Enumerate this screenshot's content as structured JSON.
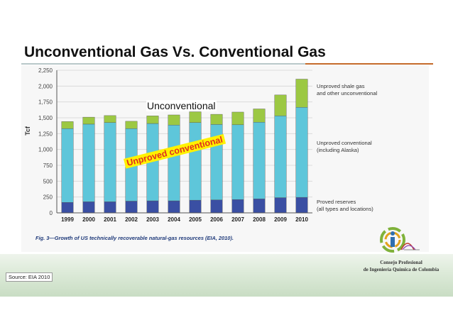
{
  "slide": {
    "title": "Unconventional Gas Vs. Conventional Gas",
    "source": "Source: EIA 2010",
    "org_line1": "Consejo Profesional",
    "org_line2": "de Ingeniería Química de Colombia",
    "overlay_unconventional": "Unconventional",
    "overlay_unproved_conventional": "Unproved conventional"
  },
  "colors": {
    "proved": "#3a4fa3",
    "unproved_conventional": "#5ec6da",
    "unproved_shale": "#9cc843",
    "accent_rule": "#c46a2a"
  },
  "chart_data": {
    "type": "bar",
    "stacked": true,
    "caption": "Fig. 3—Growth of US technically recoverable natural-gas resources (EIA, 2010).",
    "ylabel": "Tcf",
    "xlabel": "",
    "ylim": [
      0,
      2250
    ],
    "yticks": [
      "0",
      "250",
      "500",
      "750",
      "1,000",
      "1,250",
      "1,500",
      "1,750",
      "2,000",
      "2,250"
    ],
    "categories": [
      "1999",
      "2000",
      "2001",
      "2002",
      "2003",
      "2004",
      "2005",
      "2006",
      "2007",
      "2008",
      "2009",
      "2010"
    ],
    "series": [
      {
        "name": "Proved reserves (all types and locations)",
        "legend": [
          "Proved reserves",
          "(all types and locations)"
        ],
        "color_key": "proved",
        "values": [
          165,
          175,
          175,
          185,
          190,
          190,
          200,
          205,
          210,
          220,
          240,
          245
        ]
      },
      {
        "name": "Unproved conventional (including Alaska)",
        "legend": [
          "Unproved conventional",
          "(including Alaska)"
        ],
        "color_key": "unproved_conventional",
        "values": [
          1165,
          1225,
          1250,
          1145,
          1220,
          1195,
          1225,
          1190,
          1180,
          1210,
          1290,
          1420
        ]
      },
      {
        "name": "Unproved shale gas and other unconventional",
        "legend": [
          "Unproved shale gas",
          "and other unconventional"
        ],
        "color_key": "unproved_shale",
        "values": [
          110,
          110,
          110,
          115,
          120,
          160,
          170,
          160,
          200,
          210,
          330,
          445
        ]
      }
    ],
    "grid": true,
    "legend_position": "right"
  }
}
